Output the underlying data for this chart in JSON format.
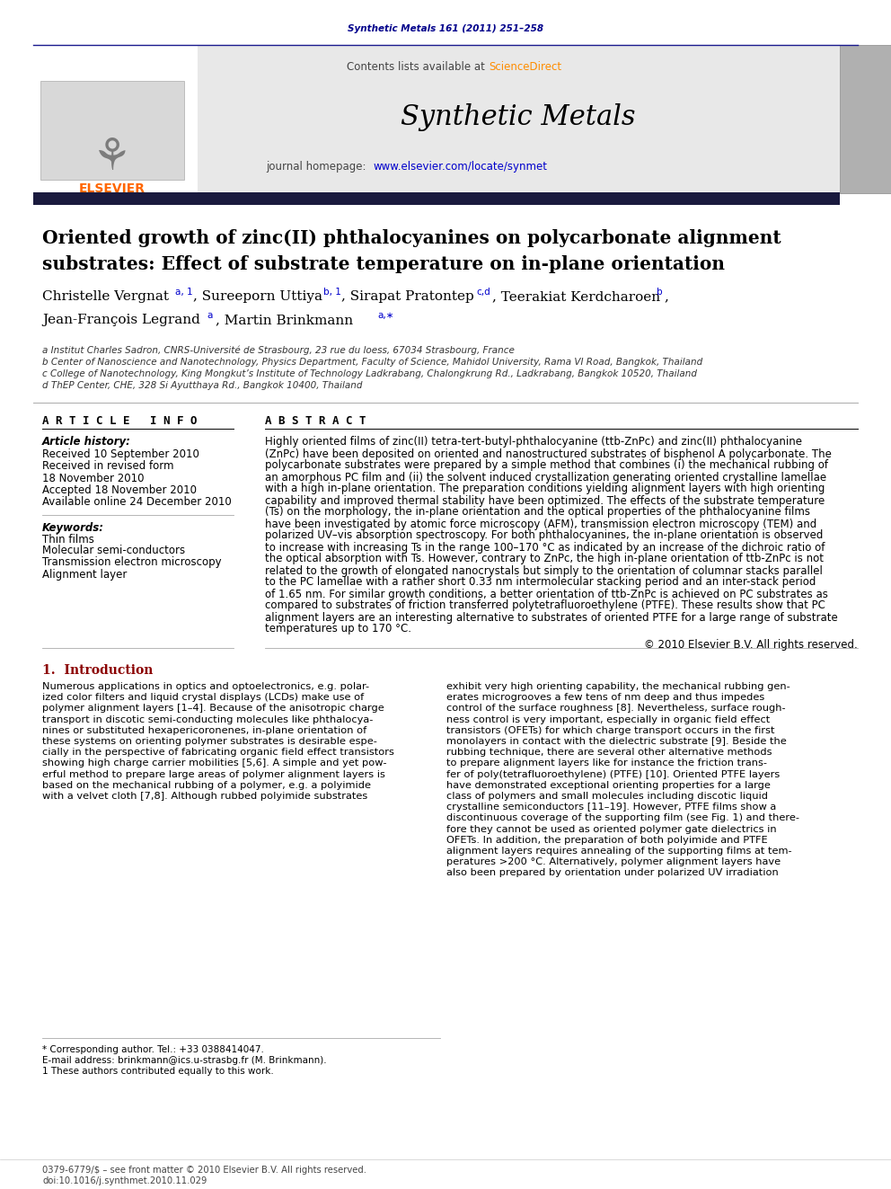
{
  "page_width": 9.92,
  "page_height": 13.23,
  "bg_color": "#ffffff",
  "header_journal_text": "Synthetic Metals 161 (2011) 251–258",
  "header_journal_color": "#00008B",
  "top_bar_color": "#1a1a6e",
  "header_bg_color": "#e8e8e8",
  "title_line1": "Oriented growth of zinc(II) phthalocyanines on polycarbonate alignment",
  "title_line2": "substrates: Effect of substrate temperature on in-plane orientation",
  "title_color": "#000000",
  "affil_a": "a Institut Charles Sadron, CNRS-Université de Strasbourg, 23 rue du loess, 67034 Strasbourg, France",
  "affil_b": "b Center of Nanoscience and Nanotechnology, Physics Department, Faculty of Science, Mahidol University, Rama VI Road, Bangkok, Thailand",
  "affil_c": "c College of Nanotechnology, King Mongkut’s Institute of Technology Ladkrabang, Chalongkrung Rd., Ladkrabang, Bangkok 10520, Thailand",
  "affil_d": "d ThEP Center, CHE, 328 Si Ayutthaya Rd., Bangkok 10400, Thailand",
  "article_info_title": "A R T I C L E   I N F O",
  "abstract_title": "A B S T R A C T",
  "article_history_label": "Article history:",
  "received": "Received 10 September 2010",
  "received_revised1": "Received in revised form",
  "received_revised2": "18 November 2010",
  "accepted": "Accepted 18 November 2010",
  "available": "Available online 24 December 2010",
  "keywords_label": "Keywords:",
  "keywords": [
    "Thin films",
    "Molecular semi-conductors",
    "Transmission electron microscopy",
    "Alignment layer"
  ],
  "abstract_text": "Highly oriented films of zinc(II) tetra-tert-butyl-phthalocyanine (ttb-ZnPc) and zinc(II) phthalocyanine\n(ZnPc) have been deposited on oriented and nanostructured substrates of bisphenol A polycarbonate. The\npolycarbonate substrates were prepared by a simple method that combines (i) the mechanical rubbing of\nan amorphous PC film and (ii) the solvent induced crystallization generating oriented crystalline lamellae\nwith a high in-plane orientation. The preparation conditions yielding alignment layers with high orienting\ncapability and improved thermal stability have been optimized. The effects of the substrate temperature\n(Ts) on the morphology, the in-plane orientation and the optical properties of the phthalocyanine films\nhave been investigated by atomic force microscopy (AFM), transmission electron microscopy (TEM) and\npolarized UV–vis absorption spectroscopy. For both phthalocyanines, the in-plane orientation is observed\nto increase with increasing Ts in the range 100–170 °C as indicated by an increase of the dichroic ratio of\nthe optical absorption with Ts. However, contrary to ZnPc, the high in-plane orientation of ttb-ZnPc is not\nrelated to the growth of elongated nanocrystals but simply to the orientation of columnar stacks parallel\nto the PC lamellae with a rather short 0.33 nm intermolecular stacking period and an inter-stack period\nof 1.65 nm. For similar growth conditions, a better orientation of ttb-ZnPc is achieved on PC substrates as\ncompared to substrates of friction transferred polytetrafluoroethylene (PTFE). These results show that PC\nalignment layers are an interesting alternative to substrates of oriented PTFE for a large range of substrate\ntemperatures up to 170 °C.",
  "copyright": "© 2010 Elsevier B.V. All rights reserved.",
  "section_intro_title": "1.  Introduction",
  "intro_col1": [
    "Numerous applications in optics and optoelectronics, e.g. polar-",
    "ized color filters and liquid crystal displays (LCDs) make use of",
    "polymer alignment layers [1–4]. Because of the anisotropic charge",
    "transport in discotic semi-conducting molecules like phthalocya-",
    "nines or substituted hexapericoronenes, in-plane orientation of",
    "these systems on orienting polymer substrates is desirable espe-",
    "cially in the perspective of fabricating organic field effect transistors",
    "showing high charge carrier mobilities [5,6]. A simple and yet pow-",
    "erful method to prepare large areas of polymer alignment layers is",
    "based on the mechanical rubbing of a polymer, e.g. a polyimide",
    "with a velvet cloth [7,8]. Although rubbed polyimide substrates"
  ],
  "intro_col2": [
    "exhibit very high orienting capability, the mechanical rubbing gen-",
    "erates microgrooves a few tens of nm deep and thus impedes",
    "control of the surface roughness [8]. Nevertheless, surface rough-",
    "ness control is very important, especially in organic field effect",
    "transistors (OFETs) for which charge transport occurs in the first",
    "monolayers in contact with the dielectric substrate [9]. Beside the",
    "rubbing technique, there are several other alternative methods",
    "to prepare alignment layers like for instance the friction trans-",
    "fer of poly(tetrafluoroethylene) (PTFE) [10]. Oriented PTFE layers",
    "have demonstrated exceptional orienting properties for a large",
    "class of polymers and small molecules including discotic liquid",
    "crystalline semiconductors [11–19]. However, PTFE films show a",
    "discontinuous coverage of the supporting film (see Fig. 1) and there-",
    "fore they cannot be used as oriented polymer gate dielectrics in",
    "OFETs. In addition, the preparation of both polyimide and PTFE",
    "alignment layers requires annealing of the supporting films at tem-",
    "peratures >200 °C. Alternatively, polymer alignment layers have",
    "also been prepared by orientation under polarized UV irradiation"
  ],
  "footnote_star": "* Corresponding author. Tel.: +33 0388414047.",
  "footnote_email": "E-mail address: brinkmann@ics.u-strasbg.fr (M. Brinkmann).",
  "footnote_1": "1 These authors contributed equally to this work.",
  "footer_left": "0379-6779/$ – see front matter © 2010 Elsevier B.V. All rights reserved.",
  "footer_doi": "doi:10.1016/j.synthmet.2010.11.029",
  "elsevier_color": "#FF6600",
  "sciencedirect_color": "#FF8C00",
  "link_color": "#0000CC",
  "divider_color": "#888888"
}
